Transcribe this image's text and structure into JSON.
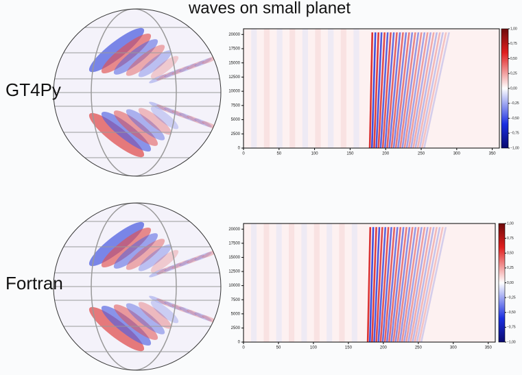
{
  "title": "waves on small planet",
  "panels": [
    {
      "label": "GT4Py",
      "heatmap": {
        "xlim": [
          0,
          360
        ],
        "xticks": [
          0,
          50,
          100,
          150,
          200,
          250,
          300,
          350
        ],
        "ylim": [
          0,
          21000
        ],
        "yticks": [
          0,
          2500,
          5000,
          7500,
          10000,
          12500,
          15000,
          17500,
          20000
        ],
        "colorbar": {
          "lim": [
            -1,
            1
          ],
          "ticks": [
            {
              "value": -1,
              "label": "−1,00"
            },
            {
              "value": -0.75,
              "label": "−0,75"
            },
            {
              "value": -0.5,
              "label": "−0,50"
            },
            {
              "value": -0.25,
              "label": "−0,25"
            },
            {
              "value": 0,
              "label": "0,00"
            },
            {
              "value": 0.25,
              "label": "0,25"
            },
            {
              "value": 0.5,
              "label": "0,50"
            },
            {
              "value": 0.75,
              "label": "0,75"
            },
            {
              "value": 1,
              "label": "1,00"
            }
          ]
        }
      }
    },
    {
      "label": "Fortran",
      "heatmap": {
        "xlim": [
          0,
          360
        ],
        "xticks": [
          0,
          50,
          100,
          150,
          200,
          250,
          300,
          350
        ],
        "ylim": [
          0,
          21000
        ],
        "yticks": [
          0,
          2500,
          5000,
          7500,
          10000,
          12500,
          15000,
          17500,
          20000
        ],
        "colorbar": {
          "lim": [
            -1,
            1
          ],
          "ticks": [
            {
              "value": -1,
              "label": "−1,00"
            },
            {
              "value": -0.75,
              "label": "−0,75"
            },
            {
              "value": -0.5,
              "label": "−0,50"
            },
            {
              "value": -0.25,
              "label": "−0,25"
            },
            {
              "value": 0,
              "label": "0,00"
            },
            {
              "value": 0.25,
              "label": "0,25"
            },
            {
              "value": 0.5,
              "label": "0,50"
            },
            {
              "value": 0.75,
              "label": "0,75"
            },
            {
              "value": 1,
              "label": "1,00"
            }
          ]
        }
      }
    }
  ]
}
